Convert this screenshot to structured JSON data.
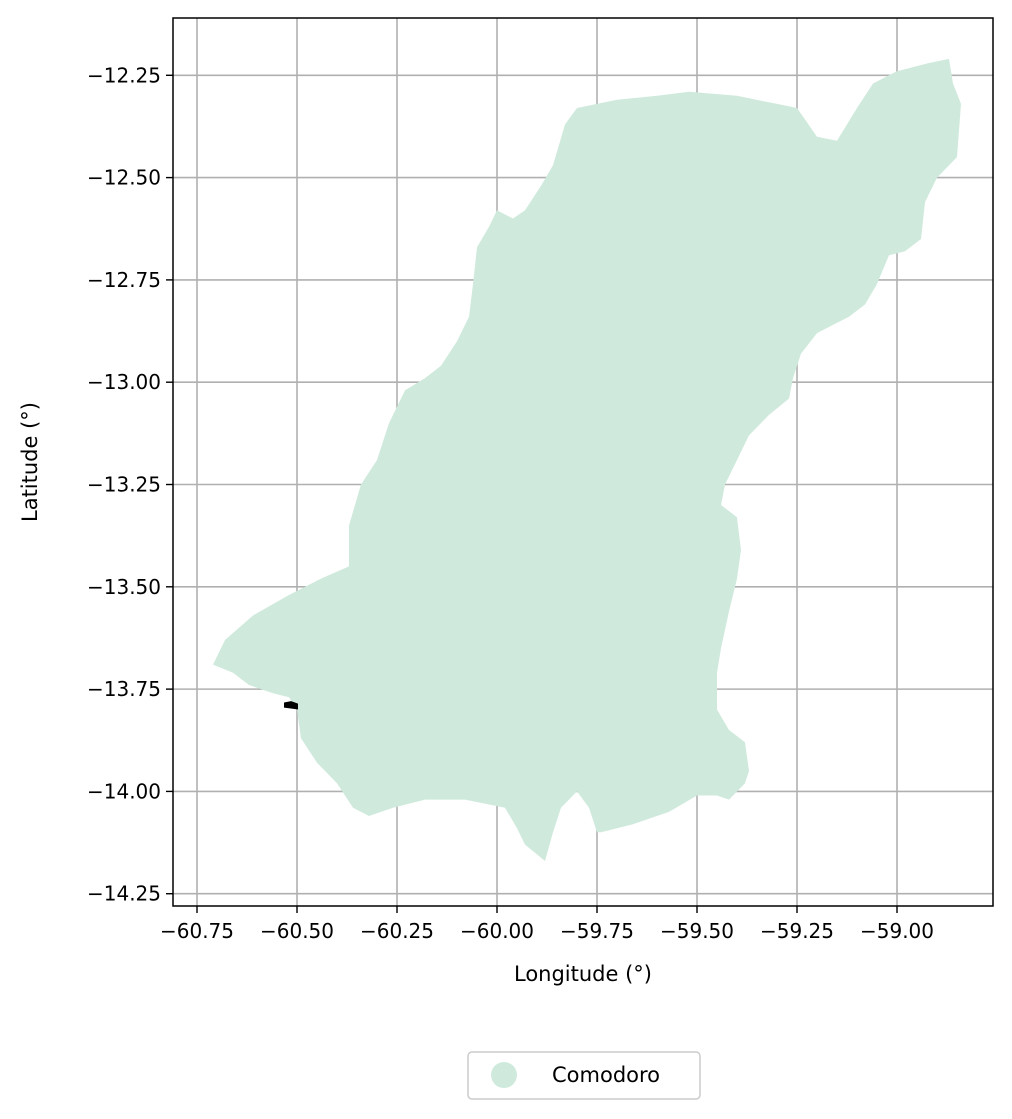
{
  "map": {
    "xlabel": "Longitude (°)",
    "ylabel": "Latitude (°)",
    "xlim": [
      -60.81,
      -58.76
    ],
    "ylim": [
      -14.28,
      -12.11
    ],
    "grid": true,
    "x_ticks": [
      -60.75,
      -60.5,
      -60.25,
      -60.0,
      -59.75,
      -59.5,
      -59.25,
      -59.0
    ],
    "x_tick_labels": [
      "−60.75",
      "−60.50",
      "−60.25",
      "−60.00",
      "−59.75",
      "−59.50",
      "−59.25",
      "−59.00"
    ],
    "y_ticks": [
      -12.25,
      -12.5,
      -12.75,
      -13.0,
      -13.25,
      -13.5,
      -13.75,
      -14.0,
      -14.25
    ],
    "y_tick_labels": [
      "−12.25",
      "−12.50",
      "−12.75",
      "−13.00",
      "−13.25",
      "−13.50",
      "−13.75",
      "−14.00",
      "−14.25"
    ],
    "region": {
      "name": "Comodoro",
      "color": "#cfeadc",
      "outline_lonlat": [
        [
          -58.87,
          -12.21
        ],
        [
          -58.86,
          -12.27
        ],
        [
          -58.84,
          -12.32
        ],
        [
          -58.85,
          -12.45
        ],
        [
          -58.9,
          -12.5
        ],
        [
          -58.93,
          -12.56
        ],
        [
          -58.94,
          -12.65
        ],
        [
          -58.98,
          -12.68
        ],
        [
          -59.02,
          -12.69
        ],
        [
          -59.05,
          -12.76
        ],
        [
          -59.08,
          -12.81
        ],
        [
          -59.12,
          -12.84
        ],
        [
          -59.16,
          -12.86
        ],
        [
          -59.2,
          -12.88
        ],
        [
          -59.24,
          -12.93
        ],
        [
          -59.26,
          -12.99
        ],
        [
          -59.27,
          -13.04
        ],
        [
          -59.32,
          -13.08
        ],
        [
          -59.37,
          -13.13
        ],
        [
          -59.4,
          -13.19
        ],
        [
          -59.43,
          -13.25
        ],
        [
          -59.44,
          -13.3
        ],
        [
          -59.4,
          -13.33
        ],
        [
          -59.39,
          -13.41
        ],
        [
          -59.4,
          -13.48
        ],
        [
          -59.42,
          -13.56
        ],
        [
          -59.44,
          -13.65
        ],
        [
          -59.45,
          -13.71
        ],
        [
          -59.45,
          -13.8
        ],
        [
          -59.42,
          -13.85
        ],
        [
          -59.38,
          -13.88
        ],
        [
          -59.37,
          -13.95
        ],
        [
          -59.38,
          -13.98
        ],
        [
          -59.42,
          -14.02
        ],
        [
          -59.45,
          -14.01
        ],
        [
          -59.5,
          -14.01
        ],
        [
          -59.57,
          -14.05
        ],
        [
          -59.66,
          -14.08
        ],
        [
          -59.74,
          -14.1
        ],
        [
          -59.75,
          -14.1
        ],
        [
          -59.77,
          -14.04
        ],
        [
          -59.8,
          -14.0
        ],
        [
          -59.84,
          -14.04
        ],
        [
          -59.86,
          -14.1
        ],
        [
          -59.88,
          -14.17
        ],
        [
          -59.93,
          -14.13
        ],
        [
          -59.95,
          -14.09
        ],
        [
          -59.98,
          -14.04
        ],
        [
          -60.08,
          -14.02
        ],
        [
          -60.18,
          -14.02
        ],
        [
          -60.26,
          -14.04
        ],
        [
          -60.32,
          -14.06
        ],
        [
          -60.36,
          -14.04
        ],
        [
          -60.4,
          -13.98
        ],
        [
          -60.45,
          -13.93
        ],
        [
          -60.49,
          -13.87
        ],
        [
          -60.5,
          -13.8
        ],
        [
          -60.52,
          -13.77
        ],
        [
          -60.56,
          -13.76
        ],
        [
          -60.62,
          -13.74
        ],
        [
          -60.66,
          -13.71
        ],
        [
          -60.71,
          -13.69
        ],
        [
          -60.68,
          -13.63
        ],
        [
          -60.61,
          -13.57
        ],
        [
          -60.52,
          -13.52
        ],
        [
          -60.44,
          -13.48
        ],
        [
          -60.37,
          -13.45
        ],
        [
          -60.37,
          -13.35
        ],
        [
          -60.34,
          -13.25
        ],
        [
          -60.3,
          -13.19
        ],
        [
          -60.27,
          -13.1
        ],
        [
          -60.23,
          -13.02
        ],
        [
          -60.18,
          -12.99
        ],
        [
          -60.14,
          -12.96
        ],
        [
          -60.1,
          -12.9
        ],
        [
          -60.07,
          -12.84
        ],
        [
          -60.06,
          -12.76
        ],
        [
          -60.05,
          -12.67
        ],
        [
          -60.02,
          -12.62
        ],
        [
          -60.0,
          -12.58
        ],
        [
          -59.96,
          -12.6
        ],
        [
          -59.93,
          -12.58
        ],
        [
          -59.89,
          -12.52
        ],
        [
          -59.86,
          -12.47
        ],
        [
          -59.83,
          -12.37
        ],
        [
          -59.8,
          -12.33
        ],
        [
          -59.7,
          -12.31
        ],
        [
          -59.6,
          -12.3
        ],
        [
          -59.52,
          -12.29
        ],
        [
          -59.4,
          -12.3
        ],
        [
          -59.3,
          -12.32
        ],
        [
          -59.25,
          -12.33
        ],
        [
          -59.2,
          -12.4
        ],
        [
          -59.15,
          -12.41
        ],
        [
          -59.1,
          -12.33
        ],
        [
          -59.06,
          -12.27
        ],
        [
          -59.0,
          -12.24
        ],
        [
          -58.92,
          -12.22
        ]
      ]
    },
    "marker": {
      "color": "#000000",
      "outline_lonlat": [
        [
          -60.53,
          -13.785
        ],
        [
          -60.515,
          -13.782
        ],
        [
          -60.5,
          -13.787
        ],
        [
          -60.5,
          -13.797
        ],
        [
          -60.515,
          -13.795
        ],
        [
          -60.53,
          -13.793
        ]
      ]
    }
  },
  "legend": {
    "entries": [
      {
        "label": "Comodoro",
        "color": "#cfeadc"
      }
    ]
  }
}
